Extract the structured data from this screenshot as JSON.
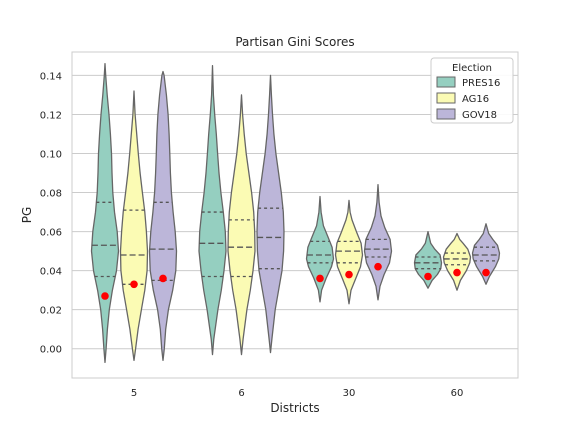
{
  "chart_data": {
    "type": "violin",
    "title": "Partisan Gini Scores",
    "xlabel": "Districts",
    "ylabel": "PG",
    "categories": [
      "5",
      "6",
      "30",
      "60"
    ],
    "ylim": [
      -0.015,
      0.152
    ],
    "yticks": [
      0.0,
      0.02,
      0.04,
      0.06,
      0.08,
      0.1,
      0.12,
      0.14
    ],
    "ytick_labels": [
      "0.00",
      "0.02",
      "0.04",
      "0.06",
      "0.08",
      "0.10",
      "0.12",
      "0.14"
    ],
    "grid": true,
    "legend": {
      "title": "Election",
      "position": "top-right"
    },
    "marker_color": "#ff0000",
    "series": [
      {
        "name": "PRES16",
        "color": "#95cfc0",
        "violins": [
          {
            "category": "5",
            "min": -0.007,
            "max": 0.146,
            "q1": 0.037,
            "median": 0.053,
            "q3": 0.075,
            "marker": 0.027,
            "shape": [
              [
                -0.007,
                0.0
              ],
              [
                0.0,
                0.08
              ],
              [
                0.01,
                0.18
              ],
              [
                0.02,
                0.32
              ],
              [
                0.03,
                0.55
              ],
              [
                0.04,
                0.85
              ],
              [
                0.05,
                1.0
              ],
              [
                0.06,
                0.9
              ],
              [
                0.07,
                0.7
              ],
              [
                0.08,
                0.58
              ],
              [
                0.09,
                0.52
              ],
              [
                0.1,
                0.48
              ],
              [
                0.11,
                0.4
              ],
              [
                0.12,
                0.3
              ],
              [
                0.13,
                0.16
              ],
              [
                0.14,
                0.05
              ],
              [
                0.146,
                0.0
              ]
            ]
          },
          {
            "category": "6",
            "min": -0.003,
            "max": 0.145,
            "q1": 0.037,
            "median": 0.054,
            "q3": 0.07,
            "marker": null,
            "shape": [
              [
                -0.003,
                0.0
              ],
              [
                0.005,
                0.1
              ],
              [
                0.02,
                0.4
              ],
              [
                0.03,
                0.65
              ],
              [
                0.04,
                0.85
              ],
              [
                0.05,
                1.0
              ],
              [
                0.06,
                0.95
              ],
              [
                0.07,
                0.8
              ],
              [
                0.08,
                0.62
              ],
              [
                0.09,
                0.48
              ],
              [
                0.1,
                0.38
              ],
              [
                0.11,
                0.28
              ],
              [
                0.12,
                0.16
              ],
              [
                0.13,
                0.07
              ],
              [
                0.145,
                0.0
              ]
            ]
          },
          {
            "category": "30",
            "min": 0.024,
            "max": 0.078,
            "q1": 0.044,
            "median": 0.048,
            "q3": 0.055,
            "marker": 0.036,
            "shape": [
              [
                0.024,
                0.0
              ],
              [
                0.03,
                0.12
              ],
              [
                0.036,
                0.45
              ],
              [
                0.042,
                0.85
              ],
              [
                0.046,
                1.0
              ],
              [
                0.052,
                0.9
              ],
              [
                0.058,
                0.55
              ],
              [
                0.063,
                0.25
              ],
              [
                0.07,
                0.08
              ],
              [
                0.078,
                0.0
              ]
            ]
          },
          {
            "category": "60",
            "min": 0.031,
            "max": 0.06,
            "q1": 0.041,
            "median": 0.044,
            "q3": 0.047,
            "marker": 0.037,
            "shape": [
              [
                0.031,
                0.0
              ],
              [
                0.035,
                0.3
              ],
              [
                0.038,
                0.7
              ],
              [
                0.041,
                0.95
              ],
              [
                0.044,
                1.0
              ],
              [
                0.048,
                0.9
              ],
              [
                0.051,
                0.5
              ],
              [
                0.054,
                0.2
              ],
              [
                0.06,
                0.0
              ]
            ]
          }
        ]
      },
      {
        "name": "AG16",
        "color": "#fbfbb4",
        "violins": [
          {
            "category": "5",
            "min": -0.006,
            "max": 0.132,
            "q1": 0.033,
            "median": 0.048,
            "q3": 0.071,
            "marker": 0.033,
            "shape": [
              [
                -0.006,
                0.0
              ],
              [
                0.0,
                0.12
              ],
              [
                0.01,
                0.3
              ],
              [
                0.02,
                0.55
              ],
              [
                0.03,
                0.8
              ],
              [
                0.04,
                0.97
              ],
              [
                0.05,
                1.0
              ],
              [
                0.06,
                0.92
              ],
              [
                0.07,
                0.8
              ],
              [
                0.08,
                0.62
              ],
              [
                0.09,
                0.45
              ],
              [
                0.1,
                0.32
              ],
              [
                0.11,
                0.2
              ],
              [
                0.12,
                0.08
              ],
              [
                0.132,
                0.0
              ]
            ]
          },
          {
            "category": "6",
            "min": -0.003,
            "max": 0.13,
            "q1": 0.037,
            "median": 0.052,
            "q3": 0.066,
            "marker": null,
            "shape": [
              [
                -0.003,
                0.0
              ],
              [
                0.005,
                0.12
              ],
              [
                0.02,
                0.4
              ],
              [
                0.03,
                0.65
              ],
              [
                0.04,
                0.85
              ],
              [
                0.05,
                1.0
              ],
              [
                0.06,
                0.98
              ],
              [
                0.07,
                0.9
              ],
              [
                0.08,
                0.75
              ],
              [
                0.09,
                0.55
              ],
              [
                0.1,
                0.35
              ],
              [
                0.11,
                0.2
              ],
              [
                0.12,
                0.08
              ],
              [
                0.13,
                0.0
              ]
            ]
          },
          {
            "category": "30",
            "min": 0.023,
            "max": 0.076,
            "q1": 0.044,
            "median": 0.05,
            "q3": 0.055,
            "marker": 0.038,
            "shape": [
              [
                0.023,
                0.0
              ],
              [
                0.03,
                0.15
              ],
              [
                0.036,
                0.5
              ],
              [
                0.042,
                0.85
              ],
              [
                0.048,
                1.0
              ],
              [
                0.054,
                0.9
              ],
              [
                0.06,
                0.55
              ],
              [
                0.066,
                0.22
              ],
              [
                0.07,
                0.08
              ],
              [
                0.076,
                0.0
              ]
            ]
          },
          {
            "category": "60",
            "min": 0.03,
            "max": 0.059,
            "q1": 0.043,
            "median": 0.046,
            "q3": 0.049,
            "marker": 0.039,
            "shape": [
              [
                0.03,
                0.0
              ],
              [
                0.035,
                0.25
              ],
              [
                0.04,
                0.7
              ],
              [
                0.044,
                0.95
              ],
              [
                0.047,
                1.0
              ],
              [
                0.051,
                0.8
              ],
              [
                0.054,
                0.45
              ],
              [
                0.056,
                0.2
              ],
              [
                0.059,
                0.0
              ]
            ]
          }
        ]
      },
      {
        "name": "GOV18",
        "color": "#bcb6d9",
        "violins": [
          {
            "category": "5",
            "min": -0.006,
            "max": 0.142,
            "q1": 0.035,
            "median": 0.051,
            "q3": 0.075,
            "marker": 0.036,
            "shape": [
              [
                -0.006,
                0.0
              ],
              [
                0.0,
                0.1
              ],
              [
                0.01,
                0.2
              ],
              [
                0.02,
                0.4
              ],
              [
                0.03,
                0.72
              ],
              [
                0.04,
                0.95
              ],
              [
                0.05,
                1.0
              ],
              [
                0.06,
                0.9
              ],
              [
                0.07,
                0.75
              ],
              [
                0.08,
                0.62
              ],
              [
                0.09,
                0.55
              ],
              [
                0.1,
                0.5
              ],
              [
                0.11,
                0.45
              ],
              [
                0.12,
                0.38
              ],
              [
                0.13,
                0.25
              ],
              [
                0.14,
                0.08
              ],
              [
                0.142,
                0.0
              ]
            ]
          },
          {
            "category": "6",
            "min": -0.002,
            "max": 0.14,
            "q1": 0.041,
            "median": 0.057,
            "q3": 0.072,
            "marker": null,
            "shape": [
              [
                -0.002,
                0.0
              ],
              [
                0.005,
                0.1
              ],
              [
                0.02,
                0.35
              ],
              [
                0.03,
                0.6
              ],
              [
                0.04,
                0.85
              ],
              [
                0.05,
                0.97
              ],
              [
                0.06,
                1.0
              ],
              [
                0.07,
                0.95
              ],
              [
                0.08,
                0.8
              ],
              [
                0.09,
                0.6
              ],
              [
                0.1,
                0.4
              ],
              [
                0.11,
                0.25
              ],
              [
                0.12,
                0.15
              ],
              [
                0.13,
                0.07
              ],
              [
                0.14,
                0.0
              ]
            ]
          },
          {
            "category": "30",
            "min": 0.025,
            "max": 0.084,
            "q1": 0.047,
            "median": 0.051,
            "q3": 0.056,
            "marker": 0.042,
            "shape": [
              [
                0.025,
                0.0
              ],
              [
                0.032,
                0.15
              ],
              [
                0.038,
                0.45
              ],
              [
                0.044,
                0.85
              ],
              [
                0.05,
                1.0
              ],
              [
                0.056,
                0.9
              ],
              [
                0.062,
                0.5
              ],
              [
                0.068,
                0.22
              ],
              [
                0.075,
                0.08
              ],
              [
                0.084,
                0.0
              ]
            ]
          },
          {
            "category": "60",
            "min": 0.033,
            "max": 0.064,
            "q1": 0.045,
            "median": 0.048,
            "q3": 0.052,
            "marker": 0.039,
            "shape": [
              [
                0.033,
                0.0
              ],
              [
                0.037,
                0.25
              ],
              [
                0.042,
                0.7
              ],
              [
                0.046,
                0.95
              ],
              [
                0.049,
                1.0
              ],
              [
                0.053,
                0.85
              ],
              [
                0.056,
                0.5
              ],
              [
                0.059,
                0.2
              ],
              [
                0.064,
                0.0
              ]
            ]
          }
        ]
      }
    ]
  }
}
